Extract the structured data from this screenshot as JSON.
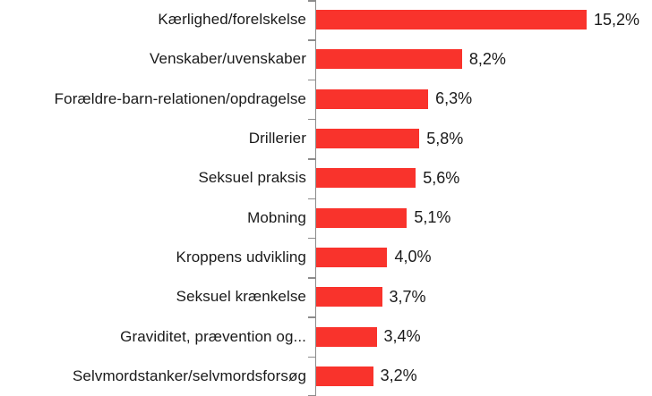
{
  "chart_data": {
    "type": "bar",
    "orientation": "horizontal",
    "title": "",
    "xlabel": "",
    "ylabel": "",
    "grid": false,
    "legend": false,
    "xlim": [
      0,
      16
    ],
    "bar_color": "#f9332c",
    "axis_color": "#8c8c8c",
    "text_color": "#1a1a1a",
    "categories": [
      "Kærlighed/forelskelse",
      "Venskaber/uvenskaber",
      "Forældre-barn-relationen/opdragelse",
      "Drillerier",
      "Seksuel praksis",
      "Mobning",
      "Kroppens udvikling",
      "Seksuel krænkelse",
      "Graviditet, prævention og...",
      "Selvmordstanker/selvmordsforsøg"
    ],
    "values": [
      15.2,
      8.2,
      6.3,
      5.8,
      5.6,
      5.1,
      4.0,
      3.7,
      3.4,
      3.2
    ],
    "value_labels": [
      "15,2%",
      "8,2%",
      "6,3%",
      "5,8%",
      "5,6%",
      "5,1%",
      "4,0%",
      "3,7%",
      "3,4%",
      "3,2%"
    ]
  }
}
